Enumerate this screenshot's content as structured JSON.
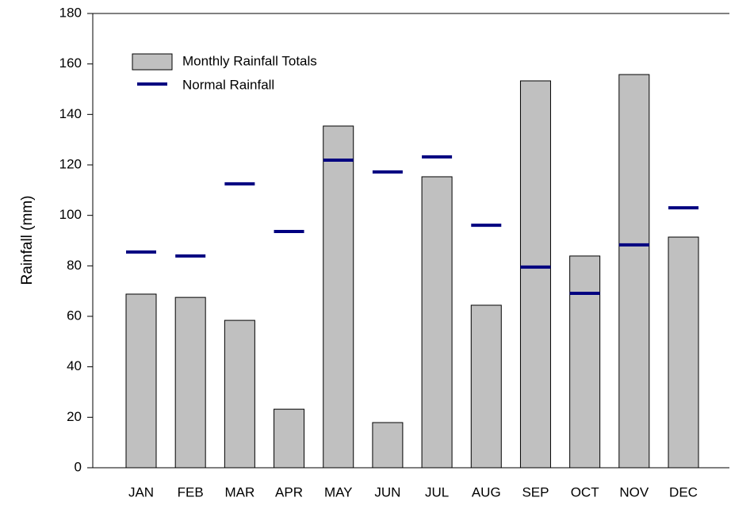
{
  "chart_data": {
    "type": "bar",
    "y_label": "Rainfall (mm)",
    "categories": [
      "JAN",
      "FEB",
      "MAR",
      "APR",
      "MAY",
      "JUN",
      "JUL",
      "AUG",
      "SEP",
      "OCT",
      "NOV",
      "DEC"
    ],
    "series": [
      {
        "name": "Monthly Rainfall Totals",
        "color": "#c0c0c0",
        "mark": "bar",
        "values": [
          68.8,
          67.5,
          58.4,
          23.2,
          135.4,
          17.9,
          115.3,
          64.4,
          153.3,
          83.9,
          155.8,
          91.4
        ]
      },
      {
        "name": "Normal Rainfall",
        "color": "#000080",
        "mark": "dash",
        "values": [
          85.5,
          83.9,
          112.5,
          93.6,
          121.9,
          117.2,
          123.2,
          96.1,
          79.5,
          69.1,
          88.3,
          103
        ]
      }
    ],
    "ylim": [
      0,
      180
    ],
    "yticks": [
      0,
      20,
      40,
      60,
      80,
      100,
      120,
      140,
      160,
      180
    ],
    "legend": "upper-left"
  }
}
